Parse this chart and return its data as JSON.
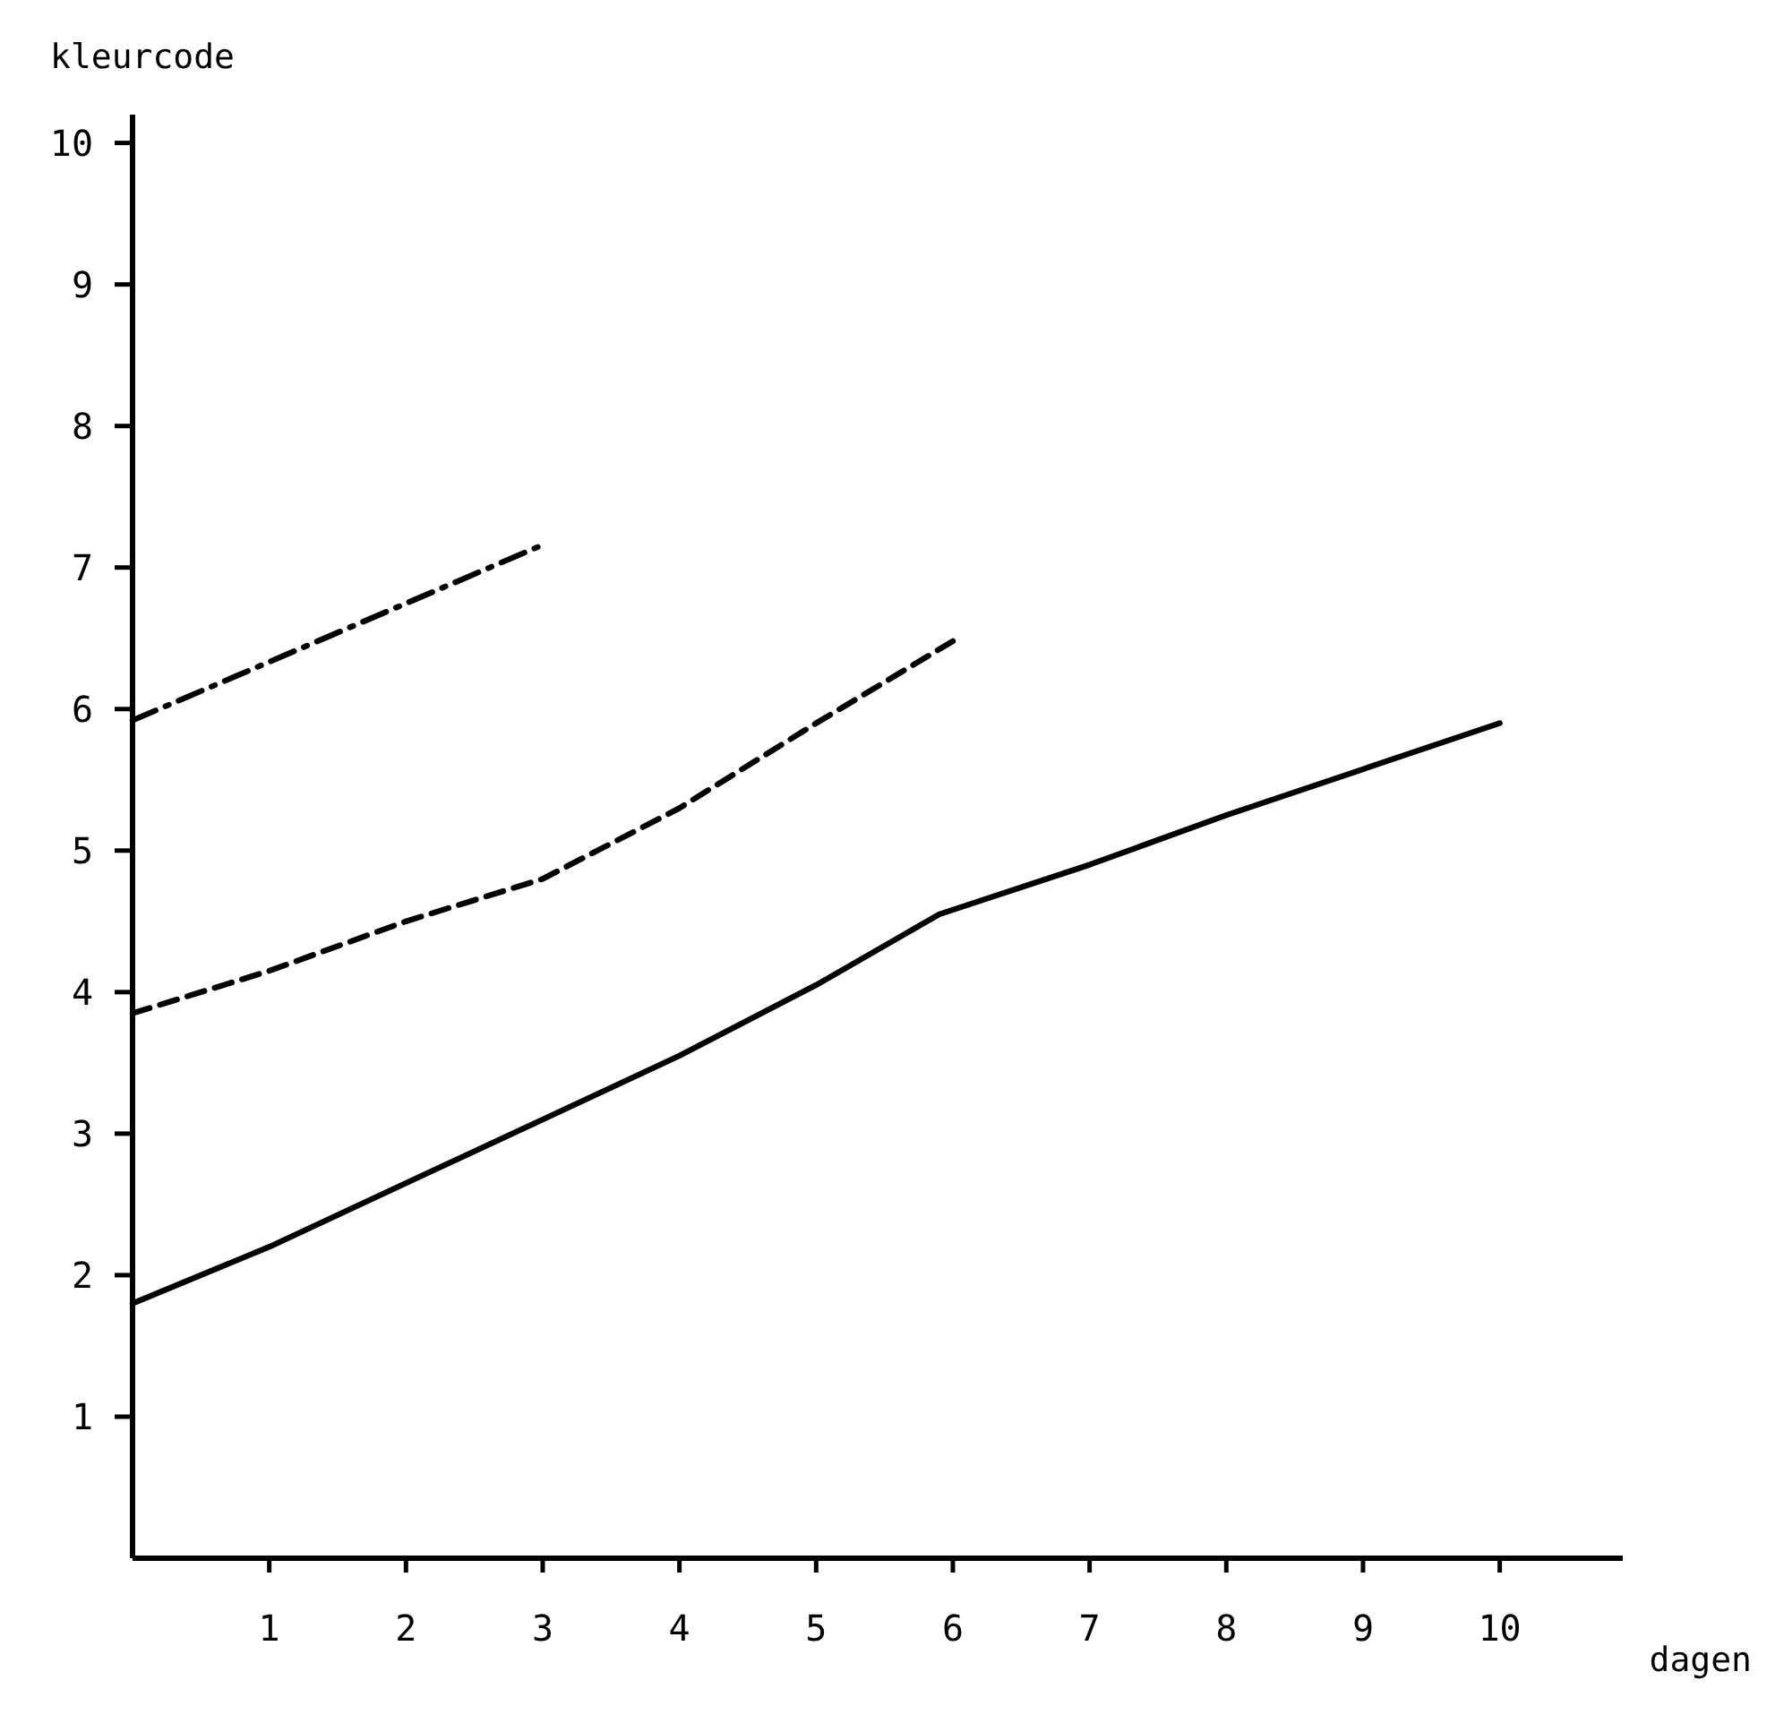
{
  "chart_data": {
    "type": "line",
    "ylabel": "kleurcode",
    "xlabel": "dagen",
    "xlim": [
      0,
      10.9
    ],
    "xticks": [
      1,
      2,
      3,
      4,
      5,
      6,
      7,
      8,
      9,
      10
    ],
    "ylim": [
      0,
      10.2
    ],
    "yticks": [
      1,
      2,
      3,
      4,
      5,
      6,
      7,
      8,
      9,
      10
    ],
    "grid": false,
    "marker": "none",
    "series": [
      {
        "color": "#000000",
        "line_style": "solid",
        "x": [
          0,
          1,
          2,
          3,
          4,
          5,
          5.9,
          7,
          8,
          10
        ],
        "values": [
          1.8,
          2.2,
          2.65,
          3.1,
          3.55,
          4.05,
          4.55,
          4.9,
          5.25,
          5.9
        ]
      },
      {
        "color": "#000000",
        "line_style": "dashed",
        "x": [
          0,
          1,
          2,
          3,
          4,
          5,
          6
        ],
        "values": [
          3.85,
          4.15,
          4.5,
          4.8,
          5.3,
          5.9,
          6.48
        ]
      },
      {
        "color": "#000000",
        "line_style": "dashdot",
        "x": [
          0,
          3
        ],
        "values": [
          5.92,
          7.16
        ]
      }
    ]
  }
}
